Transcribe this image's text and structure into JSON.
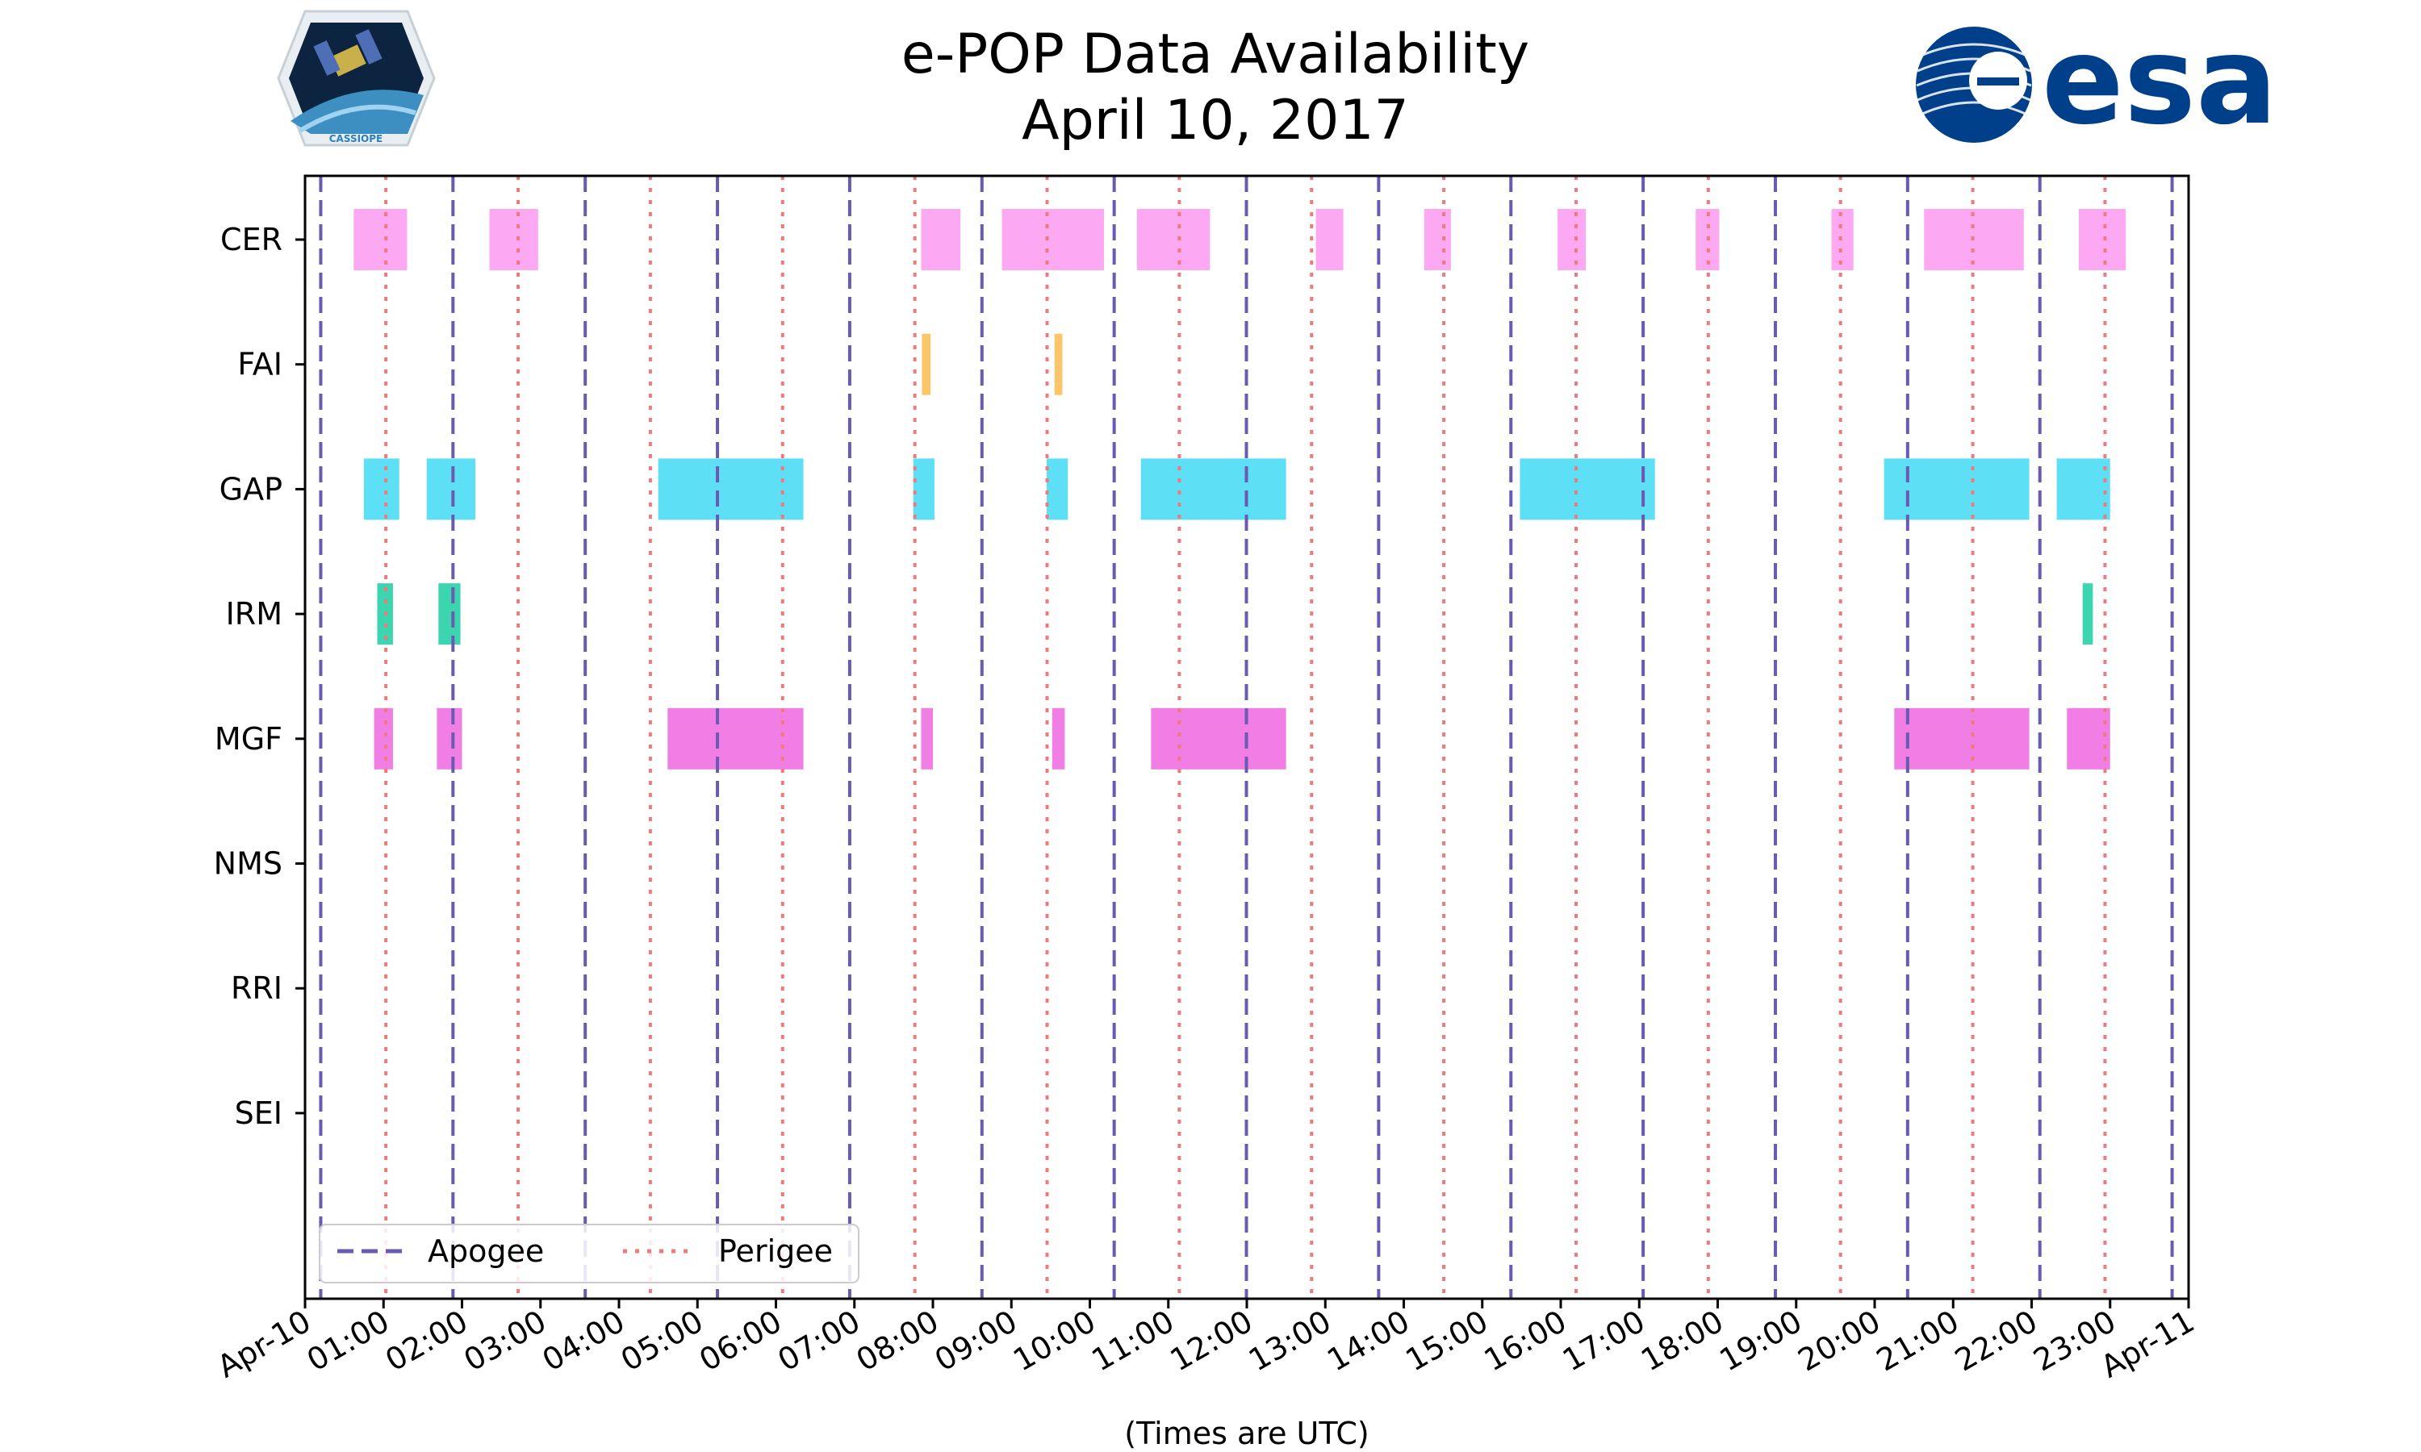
{
  "page": {
    "logos": {
      "left_mission": "CASSIOPE",
      "right_agency": "esa"
    }
  },
  "chart_data": {
    "type": "timeline",
    "title": "e-POP Data Availability",
    "subtitle": "April 10, 2017",
    "xlabel": "(Times are UTC)",
    "ylabel": "",
    "xlim_hours": [
      0,
      24
    ],
    "x_tick_hours": [
      0,
      1,
      2,
      3,
      4,
      5,
      6,
      7,
      8,
      9,
      10,
      11,
      12,
      13,
      14,
      15,
      16,
      17,
      18,
      19,
      20,
      21,
      22,
      23,
      24
    ],
    "x_tick_labels": [
      "Apr-10",
      "01:00",
      "02:00",
      "03:00",
      "04:00",
      "05:00",
      "06:00",
      "07:00",
      "08:00",
      "09:00",
      "10:00",
      "11:00",
      "12:00",
      "13:00",
      "14:00",
      "15:00",
      "16:00",
      "17:00",
      "18:00",
      "19:00",
      "20:00",
      "21:00",
      "22:00",
      "23:00",
      "Apr-11"
    ],
    "instruments": [
      "CER",
      "FAI",
      "GAP",
      "IRM",
      "MGF",
      "NMS",
      "RRI",
      "SEI"
    ],
    "colors": {
      "CER": "#fca8f2",
      "FAI": "#fdc56a",
      "GAP": "#5ddff6",
      "IRM": "#3bd6b0",
      "MGF": "#f07ee4",
      "apogee": "#6b5bb0",
      "perigee": "#f07a7a",
      "frame": "#000000"
    },
    "intervals": {
      "CER": [
        [
          0.62,
          1.3
        ],
        [
          2.35,
          2.97
        ],
        [
          7.85,
          8.35
        ],
        [
          8.88,
          10.18
        ],
        [
          10.6,
          11.53
        ],
        [
          12.88,
          13.23
        ],
        [
          14.26,
          14.6
        ],
        [
          15.96,
          16.32
        ],
        [
          17.72,
          18.02
        ],
        [
          19.45,
          19.73
        ],
        [
          20.63,
          21.9
        ],
        [
          22.6,
          23.2
        ]
      ],
      "FAI": [
        [
          7.86,
          7.97
        ],
        [
          9.55,
          9.65
        ]
      ],
      "GAP": [
        [
          0.75,
          1.2
        ],
        [
          1.55,
          2.17
        ],
        [
          4.5,
          6.35
        ],
        [
          7.75,
          8.02
        ],
        [
          9.45,
          9.72
        ],
        [
          10.65,
          12.5
        ],
        [
          15.48,
          17.2
        ],
        [
          20.12,
          21.97
        ],
        [
          22.32,
          23.0
        ]
      ],
      "IRM": [
        [
          0.92,
          1.12
        ],
        [
          1.7,
          1.98
        ],
        [
          22.65,
          22.78
        ]
      ],
      "MGF": [
        [
          0.88,
          1.12
        ],
        [
          1.68,
          2.0
        ],
        [
          4.62,
          6.35
        ],
        [
          7.85,
          8.0
        ],
        [
          9.52,
          9.68
        ],
        [
          10.78,
          12.5
        ],
        [
          20.25,
          21.97
        ],
        [
          22.45,
          23.0
        ]
      ],
      "NMS": [],
      "RRI": [],
      "SEI": []
    },
    "apogee_hours": [
      0.2,
      1.885,
      3.57,
      5.255,
      6.94,
      8.625,
      10.31,
      11.995,
      13.68,
      15.365,
      17.05,
      18.735,
      20.42,
      22.105,
      23.79
    ],
    "perigee_hours": [
      1.03,
      2.715,
      4.4,
      6.085,
      7.77,
      9.455,
      11.14,
      12.825,
      14.51,
      16.195,
      17.88,
      19.565,
      21.25,
      22.935
    ],
    "legend": {
      "position": "lower-left",
      "entries": [
        "Apogee",
        "Perigee"
      ]
    }
  }
}
